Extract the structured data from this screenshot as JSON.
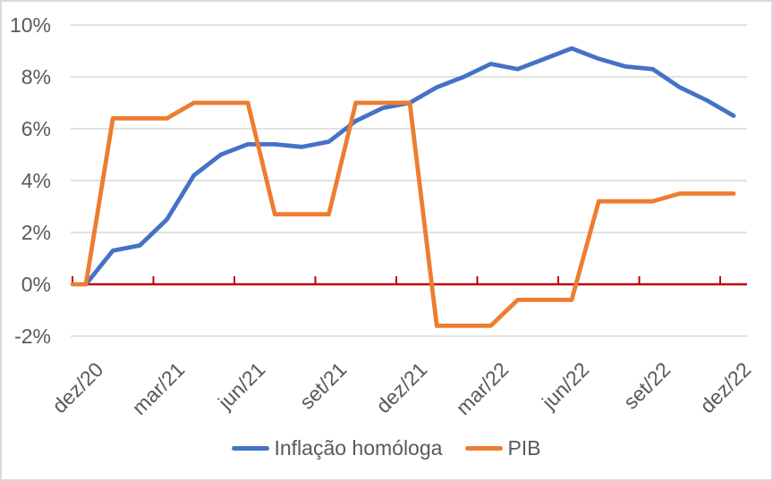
{
  "chart_data": {
    "type": "line",
    "title": "",
    "xlabel": "",
    "ylabel": "",
    "x_count": 25,
    "x_tick_labels": [
      "dez/20",
      "mar/21",
      "jun/21",
      "set/21",
      "dez/21",
      "mar/22",
      "jun/22",
      "set/22",
      "dez/22"
    ],
    "x_tick_positions": [
      0,
      3,
      6,
      9,
      12,
      15,
      18,
      21,
      24
    ],
    "y_axis": {
      "ylim": [
        -2,
        10
      ],
      "ticks": [
        {
          "label": "10%",
          "value": 10
        },
        {
          "label": "8%",
          "value": 8
        },
        {
          "label": "6%",
          "value": 6
        },
        {
          "label": "4%",
          "value": 4
        },
        {
          "label": "2%",
          "value": 2
        },
        {
          "label": "0%",
          "value": 0
        },
        {
          "label": "-2%",
          "value": -2
        }
      ]
    },
    "grid": true,
    "legend_position": "bottom",
    "gridline_color": "#d9d9d9",
    "axis_line_color": "#c00000",
    "text_color": "#595959",
    "series": [
      {
        "name": "Inflação homóloga",
        "color": "#4472C4",
        "values": [
          0.0,
          1.3,
          1.5,
          2.5,
          4.2,
          5.0,
          5.4,
          5.4,
          5.3,
          5.5,
          6.3,
          6.8,
          7.0,
          7.6,
          8.0,
          8.5,
          8.3,
          8.7,
          9.1,
          8.7,
          8.4,
          8.3,
          7.6,
          7.1,
          6.5
        ]
      },
      {
        "name": "PIB",
        "color": "#ED7D31",
        "starts_at_plot_edge": true,
        "values": [
          0.0,
          6.4,
          6.4,
          6.4,
          7.0,
          7.0,
          7.0,
          2.7,
          2.7,
          2.7,
          7.0,
          7.0,
          7.0,
          -1.6,
          -1.6,
          -1.6,
          -0.6,
          -0.6,
          -0.6,
          3.2,
          3.2,
          3.2,
          3.5,
          3.5,
          3.5
        ]
      }
    ]
  }
}
